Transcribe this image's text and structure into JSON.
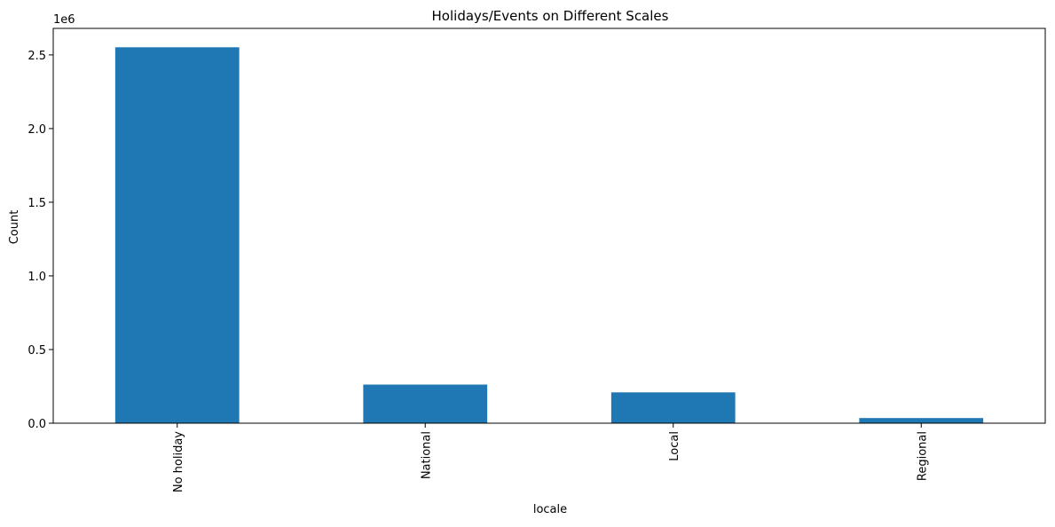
{
  "chart_data": {
    "type": "bar",
    "title": "Holidays/Events on Different Scales",
    "xlabel": "locale",
    "ylabel": "Count",
    "y_offset_label": "1e6",
    "categories": [
      "No holiday",
      "National",
      "Local",
      "Regional"
    ],
    "values": [
      2551824,
      262080,
      209190,
      35000
    ],
    "ylim": [
      0,
      2680000
    ],
    "yticks": [
      0.0,
      0.5,
      1.0,
      1.5,
      2.0,
      2.5
    ],
    "ytick_scale": 1000000,
    "bar_color": "#1f77b4",
    "grid": false,
    "legend": "none"
  }
}
